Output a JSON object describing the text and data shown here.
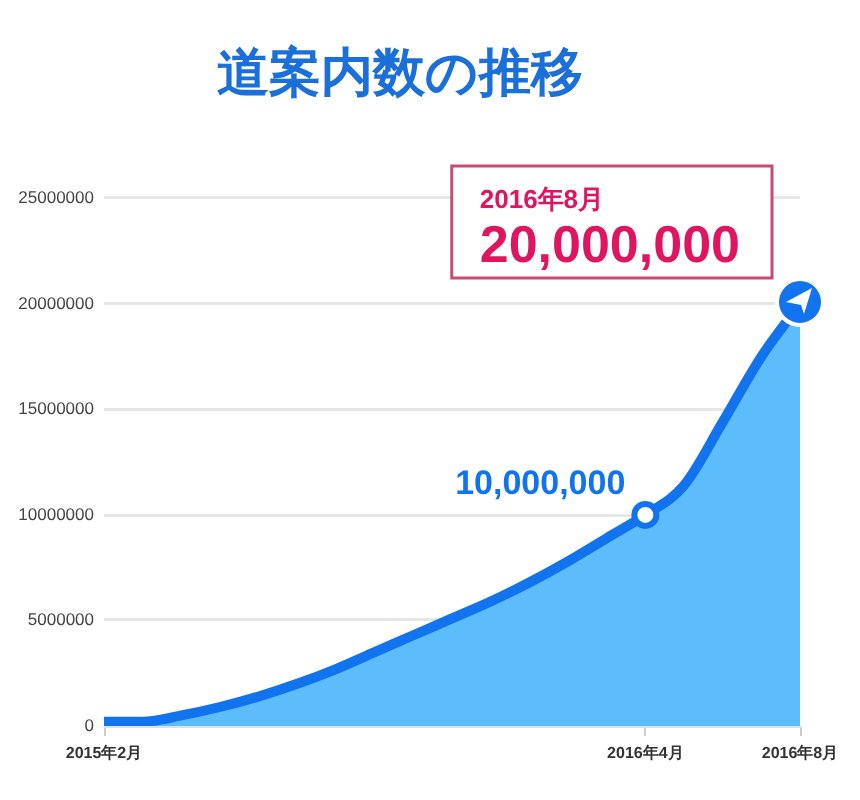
{
  "chart_data": {
    "type": "area",
    "title": "道案内数の推移",
    "x": [
      "2015-02",
      "2015-03",
      "2015-04",
      "2015-05",
      "2015-06",
      "2015-07",
      "2015-08",
      "2015-09",
      "2015-10",
      "2015-11",
      "2015-12",
      "2016-01",
      "2016-02",
      "2016-03",
      "2016-04",
      "2016-05",
      "2016-06",
      "2016-07",
      "2016-08"
    ],
    "series": [
      {
        "color": "#1273ee",
        "values": [
          200000,
          200000,
          500000,
          900000,
          1400000,
          2000000,
          2700000,
          3500000,
          4300000,
          5100000,
          5900000,
          6800000,
          7800000,
          8900000,
          10000000,
          11400000,
          14400000,
          17500000,
          20000000
        ]
      }
    ],
    "xlim": [
      "2015-02",
      "2016-08"
    ],
    "xticks": [
      {
        "value": "2015-02",
        "label": "2015年2月"
      },
      {
        "value": "2016-04",
        "label": "2016年4月"
      },
      {
        "value": "2016-08",
        "label": "2016年8月"
      }
    ],
    "ylim": [
      0,
      25000000
    ],
    "yticks": [
      0,
      5000000,
      10000000,
      15000000,
      20000000,
      25000000
    ],
    "grid": "y",
    "legend": false,
    "annotations": [
      {
        "text": "10,000,000",
        "x": "2016-04",
        "y": 10000000
      },
      {
        "text": "2016年8月\n20,000,000",
        "x": "2016-08",
        "y": 20000000
      }
    ]
  }
}
